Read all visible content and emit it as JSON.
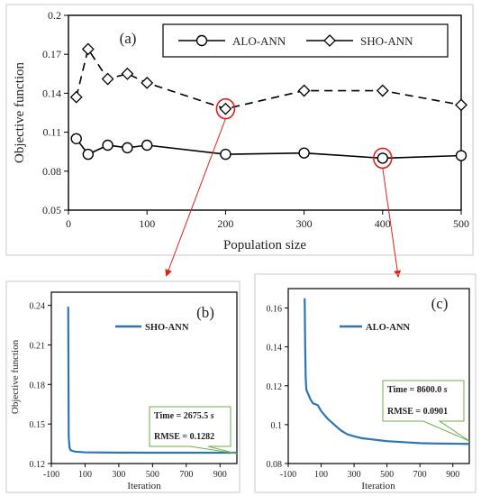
{
  "chart_data": [
    {
      "id": "a",
      "type": "line",
      "panel_label": "(a)",
      "xlabel": "Population size",
      "ylabel": "Objective function",
      "xlim": [
        0,
        500
      ],
      "ylim": [
        0.05,
        0.2
      ],
      "x_ticks": [
        0,
        100,
        200,
        300,
        400,
        500
      ],
      "y_ticks": [
        "0.05",
        "0.08",
        "0.11",
        "0.14",
        "0.17",
        "0.2"
      ],
      "grid": false,
      "legend": "top-right",
      "series": [
        {
          "name": "ALO-ANN",
          "marker": "circle",
          "line_style": "solid",
          "x": [
            10,
            25,
            50,
            75,
            100,
            200,
            300,
            400,
            500
          ],
          "values": [
            0.105,
            0.093,
            0.1,
            0.098,
            0.1,
            0.093,
            0.094,
            0.09,
            0.092
          ]
        },
        {
          "name": "SHO-ANN",
          "marker": "diamond",
          "line_style": "dashed",
          "x": [
            10,
            25,
            50,
            75,
            100,
            200,
            300,
            400,
            500
          ],
          "values": [
            0.137,
            0.174,
            0.151,
            0.155,
            0.148,
            0.128,
            0.142,
            0.142,
            0.131
          ]
        }
      ],
      "highlights": [
        {
          "series": "SHO-ANN",
          "x": 200,
          "y": 0.128,
          "links_to": "b"
        },
        {
          "series": "ALO-ANN",
          "x": 400,
          "y": 0.09,
          "links_to": "c"
        }
      ],
      "highlight_color": "#e0201b"
    },
    {
      "id": "b",
      "type": "line",
      "panel_label": "(b)",
      "xlabel": "Iteration",
      "ylabel": "Objective function",
      "xlim": [
        -100,
        1000
      ],
      "ylim": [
        0.12,
        0.25
      ],
      "x_ticks": [
        "-100",
        "100",
        "300",
        "500",
        "700",
        "900"
      ],
      "y_ticks": [
        "0.12",
        "0.15",
        "0.18",
        "0.21",
        "0.24"
      ],
      "legend": "top-center",
      "series": [
        {
          "name": "SHO-ANN",
          "color": "#2e75b6",
          "x": [
            0,
            3,
            8,
            15,
            40,
            100,
            300,
            500,
            700,
            1000
          ],
          "values": [
            0.239,
            0.14,
            0.132,
            0.13,
            0.129,
            0.1285,
            0.1283,
            0.1282,
            0.1282,
            0.1282
          ]
        }
      ],
      "annotation": {
        "time_label": "Time = 2675.5",
        "time_unit": "s",
        "rmse_label": "RMSE = 0.1282"
      }
    },
    {
      "id": "c",
      "type": "line",
      "panel_label": "(c)",
      "xlabel": "Iteration",
      "ylabel": "",
      "xlim": [
        -100,
        1000
      ],
      "ylim": [
        0.08,
        0.17
      ],
      "x_ticks": [
        "-100",
        "100",
        "300",
        "500",
        "700",
        "900"
      ],
      "y_ticks": [
        "0.08",
        "0.1",
        "0.12",
        "0.14",
        "0.16"
      ],
      "legend": "top-center",
      "series": [
        {
          "name": "ALO-ANN",
          "color": "#2e75b6",
          "x": [
            0,
            3,
            6,
            10,
            20,
            35,
            50,
            80,
            100,
            140,
            180,
            220,
            260,
            300,
            350,
            400,
            450,
            500,
            600,
            700,
            800,
            900,
            1000
          ],
          "values": [
            0.165,
            0.14,
            0.124,
            0.118,
            0.116,
            0.113,
            0.111,
            0.11,
            0.107,
            0.103,
            0.1,
            0.097,
            0.095,
            0.094,
            0.093,
            0.0925,
            0.092,
            0.0915,
            0.091,
            0.0905,
            0.0903,
            0.0902,
            0.0901
          ]
        }
      ],
      "annotation": {
        "time_label": "Time = 8600.0",
        "time_unit": "s",
        "rmse_label": "RMSE = 0.0901"
      }
    }
  ]
}
